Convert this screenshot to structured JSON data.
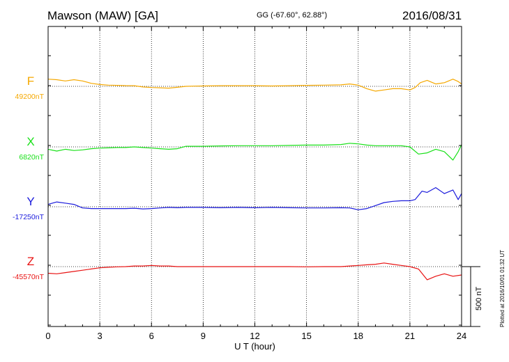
{
  "header": {
    "station": "Mawson (MAW)  [GA]",
    "coords": "GG (-67.60°,  62.88°)",
    "date": "2016/08/31"
  },
  "footer": {
    "plotted": "Plotted at 2016/10/01 01:32 UT",
    "scale_label": "500 nT"
  },
  "colors": {
    "F": "#f5a800",
    "X": "#18e018",
    "Y": "#1a1adc",
    "Z": "#e81212"
  },
  "chart_data": {
    "type": "line",
    "title": "Mawson (MAW)  [GA]",
    "xlabel": "U T (hour)",
    "xlim": [
      0,
      24
    ],
    "xticks": [
      0,
      3,
      6,
      9,
      12,
      15,
      18,
      21,
      24
    ],
    "grid": true,
    "scale_bar_nT": 500,
    "series": [
      {
        "name": "F",
        "baseline_label": "49200nT",
        "color": "#f5a800",
        "offsets_nT": [
          [
            0,
            60
          ],
          [
            0.5,
            55
          ],
          [
            1,
            45
          ],
          [
            1.5,
            55
          ],
          [
            2,
            45
          ],
          [
            2.5,
            25
          ],
          [
            3,
            15
          ],
          [
            3.5,
            10
          ],
          [
            4,
            8
          ],
          [
            4.5,
            6
          ],
          [
            5,
            5
          ],
          [
            5.5,
            -5
          ],
          [
            6,
            -10
          ],
          [
            6.5,
            -12
          ],
          [
            7,
            -15
          ],
          [
            7.5,
            -8
          ],
          [
            8,
            0
          ],
          [
            8.5,
            2
          ],
          [
            9,
            3
          ],
          [
            10,
            5
          ],
          [
            11,
            5
          ],
          [
            12,
            5
          ],
          [
            13,
            3
          ],
          [
            14,
            5
          ],
          [
            15,
            8
          ],
          [
            16,
            10
          ],
          [
            17,
            12
          ],
          [
            17.5,
            20
          ],
          [
            18,
            10
          ],
          [
            18.5,
            -20
          ],
          [
            19,
            -40
          ],
          [
            19.5,
            -30
          ],
          [
            20,
            -20
          ],
          [
            20.5,
            -20
          ],
          [
            21,
            -30
          ],
          [
            21.3,
            -10
          ],
          [
            21.6,
            30
          ],
          [
            22,
            50
          ],
          [
            22.5,
            20
          ],
          [
            23,
            30
          ],
          [
            23.5,
            60
          ],
          [
            23.8,
            40
          ],
          [
            24,
            20
          ]
        ]
      },
      {
        "name": "X",
        "baseline_label": "6820nT",
        "color": "#18e018",
        "offsets_nT": [
          [
            0,
            -20
          ],
          [
            0.5,
            -35
          ],
          [
            1,
            -20
          ],
          [
            1.5,
            -30
          ],
          [
            2,
            -25
          ],
          [
            2.5,
            -15
          ],
          [
            3,
            -10
          ],
          [
            3.5,
            -8
          ],
          [
            4,
            -5
          ],
          [
            4.5,
            -5
          ],
          [
            5,
            0
          ],
          [
            5.5,
            -5
          ],
          [
            6,
            -10
          ],
          [
            6.5,
            -15
          ],
          [
            7,
            -20
          ],
          [
            7.5,
            -15
          ],
          [
            8,
            5
          ],
          [
            8.5,
            5
          ],
          [
            9,
            5
          ],
          [
            10,
            8
          ],
          [
            11,
            10
          ],
          [
            12,
            10
          ],
          [
            13,
            10
          ],
          [
            14,
            12
          ],
          [
            15,
            15
          ],
          [
            16,
            15
          ],
          [
            17,
            20
          ],
          [
            17.5,
            30
          ],
          [
            18,
            25
          ],
          [
            18.5,
            15
          ],
          [
            19,
            10
          ],
          [
            19.5,
            10
          ],
          [
            20,
            10
          ],
          [
            20.5,
            10
          ],
          [
            21,
            0
          ],
          [
            21.5,
            -60
          ],
          [
            22,
            -50
          ],
          [
            22.5,
            -20
          ],
          [
            23,
            -40
          ],
          [
            23.5,
            -110
          ],
          [
            23.8,
            -40
          ],
          [
            24,
            20
          ]
        ]
      },
      {
        "name": "Y",
        "baseline_label": "-17250nT",
        "color": "#1a1adc",
        "offsets_nT": [
          [
            0,
            20
          ],
          [
            0.5,
            40
          ],
          [
            1,
            30
          ],
          [
            1.5,
            20
          ],
          [
            2,
            -10
          ],
          [
            2.5,
            -15
          ],
          [
            3,
            -15
          ],
          [
            3.5,
            -15
          ],
          [
            4,
            -15
          ],
          [
            4.5,
            -15
          ],
          [
            5,
            -12
          ],
          [
            5.5,
            -18
          ],
          [
            6,
            -15
          ],
          [
            6.5,
            -10
          ],
          [
            7,
            -5
          ],
          [
            7.5,
            -8
          ],
          [
            8,
            -5
          ],
          [
            9,
            -5
          ],
          [
            10,
            -8
          ],
          [
            11,
            -5
          ],
          [
            12,
            -8
          ],
          [
            13,
            -5
          ],
          [
            14,
            -8
          ],
          [
            15,
            -10
          ],
          [
            16,
            -10
          ],
          [
            17,
            -8
          ],
          [
            17.5,
            -10
          ],
          [
            18,
            -25
          ],
          [
            18.5,
            -15
          ],
          [
            19,
            10
          ],
          [
            19.5,
            35
          ],
          [
            20,
            45
          ],
          [
            20.5,
            50
          ],
          [
            21,
            50
          ],
          [
            21.3,
            60
          ],
          [
            21.7,
            130
          ],
          [
            22,
            120
          ],
          [
            22.5,
            160
          ],
          [
            23,
            110
          ],
          [
            23.5,
            140
          ],
          [
            23.8,
            60
          ],
          [
            24,
            110
          ]
        ]
      },
      {
        "name": "Z",
        "baseline_label": "-45570nT",
        "color": "#e81212",
        "offsets_nT": [
          [
            0,
            -55
          ],
          [
            0.5,
            -60
          ],
          [
            1,
            -50
          ],
          [
            1.5,
            -40
          ],
          [
            2,
            -30
          ],
          [
            2.5,
            -20
          ],
          [
            3,
            -10
          ],
          [
            3.5,
            -5
          ],
          [
            4,
            -2
          ],
          [
            4.5,
            0
          ],
          [
            5,
            5
          ],
          [
            5.5,
            5
          ],
          [
            6,
            10
          ],
          [
            6.5,
            5
          ],
          [
            7,
            5
          ],
          [
            7.5,
            0
          ],
          [
            8,
            0
          ],
          [
            9,
            0
          ],
          [
            10,
            0
          ],
          [
            11,
            0
          ],
          [
            12,
            0
          ],
          [
            13,
            0
          ],
          [
            14,
            0
          ],
          [
            15,
            -2
          ],
          [
            16,
            0
          ],
          [
            17,
            0
          ],
          [
            17.5,
            5
          ],
          [
            18,
            10
          ],
          [
            18.5,
            15
          ],
          [
            19,
            20
          ],
          [
            19.5,
            30
          ],
          [
            20,
            20
          ],
          [
            20.5,
            10
          ],
          [
            21,
            0
          ],
          [
            21.5,
            -20
          ],
          [
            22,
            -110
          ],
          [
            22.5,
            -80
          ],
          [
            23,
            -60
          ],
          [
            23.5,
            -80
          ],
          [
            24,
            -70
          ]
        ]
      }
    ]
  }
}
